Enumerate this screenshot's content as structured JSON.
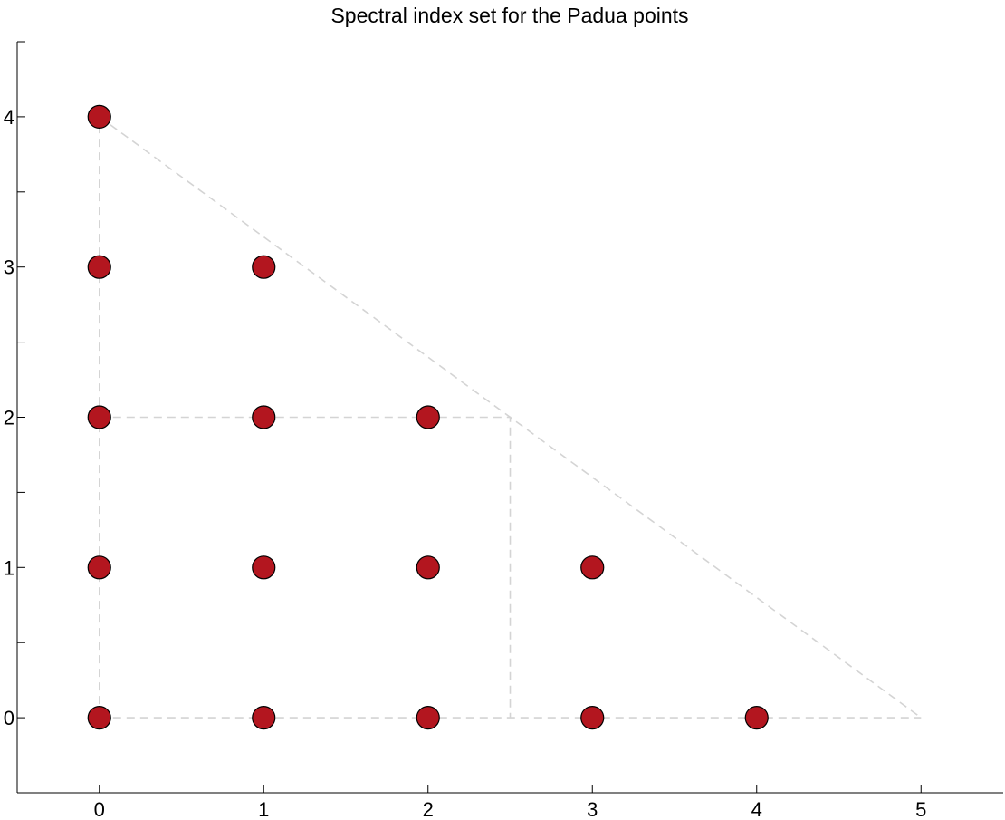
{
  "chart_data": {
    "type": "scatter",
    "title": "Spectral index set for the Padua points",
    "xlabel": "",
    "ylabel": "",
    "xlim": [
      -0.5,
      5.5
    ],
    "ylim": [
      -0.5,
      4.5
    ],
    "x_ticks": [
      0,
      1,
      2,
      3,
      4,
      5
    ],
    "y_ticks": [
      0,
      1,
      2,
      3,
      4
    ],
    "y_minor_ticks": [
      0.5,
      1.5,
      2.5,
      3.5,
      4.5
    ],
    "grid": false,
    "legend": "none",
    "marker_color": "#b3161f",
    "guide_color": "#d4d4d4",
    "series": [
      {
        "points": [
          {
            "x": 0,
            "y": 0
          },
          {
            "x": 1,
            "y": 0
          },
          {
            "x": 2,
            "y": 0
          },
          {
            "x": 3,
            "y": 0
          },
          {
            "x": 4,
            "y": 0
          },
          {
            "x": 0,
            "y": 1
          },
          {
            "x": 1,
            "y": 1
          },
          {
            "x": 2,
            "y": 1
          },
          {
            "x": 3,
            "y": 1
          },
          {
            "x": 0,
            "y": 2
          },
          {
            "x": 1,
            "y": 2
          },
          {
            "x": 2,
            "y": 2
          },
          {
            "x": 0,
            "y": 3
          },
          {
            "x": 1,
            "y": 3
          },
          {
            "x": 0,
            "y": 4
          }
        ]
      }
    ],
    "guide_lines": [
      {
        "points": [
          [
            0,
            0
          ],
          [
            5,
            0
          ]
        ]
      },
      {
        "points": [
          [
            0,
            0
          ],
          [
            0,
            4
          ]
        ]
      },
      {
        "points": [
          [
            0,
            4
          ],
          [
            5,
            0
          ]
        ]
      },
      {
        "points": [
          [
            0,
            2
          ],
          [
            2.5,
            2
          ],
          [
            2.5,
            0
          ]
        ]
      }
    ]
  }
}
